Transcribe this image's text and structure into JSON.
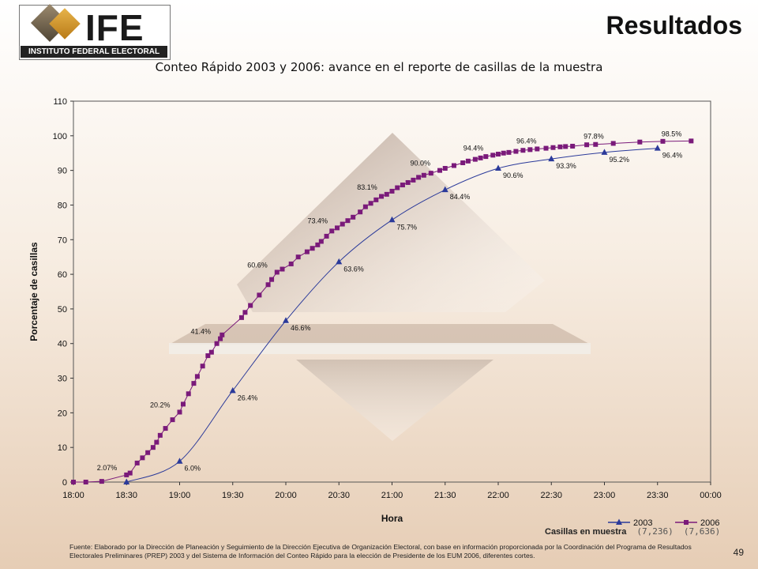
{
  "logo": {
    "text": "IFE",
    "subtitle": "INSTITUTO FEDERAL ELECTORAL"
  },
  "page_title": "Resultados",
  "page_number": "49",
  "source_note": "Fuente: Elaborado por la Dirección de Planeación y Seguimiento de la Dirección Ejecutiva de Organización Electoral, con base en información proporcionada por la Coordinación del Programa de Resultados Electorales Preliminares (PREP) 2003 y del Sistema de Información del Conteo Rápido para la elección de Presidente de los EUM 2006, diferentes cortes.",
  "sample": {
    "label": "Casillas en muestra",
    "n2003": "(7,236)",
    "n2006": "(7,636)"
  },
  "colors": {
    "s2003": "#2b3a9a",
    "s2006": "#7a1a7a"
  },
  "chart_data": {
    "type": "line",
    "title": "Conteo Rápido 2003 y 2006: avance en el reporte de casillas de la muestra",
    "xlabel": "Hora",
    "ylabel": "Porcentaje de casillas",
    "ylim": [
      0,
      110
    ],
    "yticks": [
      0,
      10,
      20,
      30,
      40,
      50,
      60,
      70,
      80,
      90,
      100,
      110
    ],
    "xlim": [
      "18:00",
      "00:00"
    ],
    "xticks": [
      "18:00",
      "18:30",
      "19:00",
      "19:30",
      "20:00",
      "20:30",
      "21:00",
      "21:30",
      "22:00",
      "22:30",
      "23:00",
      "23:30",
      "00:00"
    ],
    "grid": false,
    "legend": "bottom-right",
    "series": [
      {
        "name": "2003",
        "marker": "triangle",
        "points": [
          {
            "x": "18:30",
            "y": 0.0
          },
          {
            "x": "19:00",
            "y": 6.0,
            "label": "6.0%"
          },
          {
            "x": "19:30",
            "y": 26.4,
            "label": "26.4%"
          },
          {
            "x": "20:00",
            "y": 46.6,
            "label": "46.6%"
          },
          {
            "x": "20:30",
            "y": 63.6,
            "label": "63.6%"
          },
          {
            "x": "21:00",
            "y": 75.7,
            "label": "75.7%"
          },
          {
            "x": "21:30",
            "y": 84.4,
            "label": "84.4%"
          },
          {
            "x": "22:00",
            "y": 90.6,
            "label": "90.6%"
          },
          {
            "x": "22:30",
            "y": 93.3,
            "label": "93.3%"
          },
          {
            "x": "23:00",
            "y": 95.2,
            "label": "95.2%"
          },
          {
            "x": "23:30",
            "y": 96.4,
            "label": "96.4%"
          }
        ]
      },
      {
        "name": "2006",
        "marker": "square",
        "points": [
          {
            "x": "18:00",
            "y": 0.0
          },
          {
            "x": "18:07",
            "y": 0.0
          },
          {
            "x": "18:16",
            "y": 0.2
          },
          {
            "x": "18:30",
            "y": 2.07,
            "label": "2.07%"
          },
          {
            "x": "18:32",
            "y": 2.6
          },
          {
            "x": "18:36",
            "y": 5.5
          },
          {
            "x": "18:39",
            "y": 7.0
          },
          {
            "x": "18:42",
            "y": 8.5
          },
          {
            "x": "18:45",
            "y": 10.0
          },
          {
            "x": "18:47",
            "y": 11.5
          },
          {
            "x": "18:49",
            "y": 13.5
          },
          {
            "x": "18:52",
            "y": 15.5
          },
          {
            "x": "18:56",
            "y": 18.0
          },
          {
            "x": "19:00",
            "y": 20.2,
            "label": "20.2%"
          },
          {
            "x": "19:02",
            "y": 22.5
          },
          {
            "x": "19:05",
            "y": 25.5
          },
          {
            "x": "19:08",
            "y": 28.5
          },
          {
            "x": "19:10",
            "y": 30.5
          },
          {
            "x": "19:13",
            "y": 33.5
          },
          {
            "x": "19:16",
            "y": 36.5
          },
          {
            "x": "19:18",
            "y": 37.5
          },
          {
            "x": "19:21",
            "y": 40.0
          },
          {
            "x": "19:23",
            "y": 41.4,
            "label": "41.4%"
          },
          {
            "x": "19:24",
            "y": 42.5
          },
          {
            "x": "19:35",
            "y": 47.5
          },
          {
            "x": "19:37",
            "y": 49.0
          },
          {
            "x": "19:40",
            "y": 51.0
          },
          {
            "x": "19:45",
            "y": 54.0
          },
          {
            "x": "19:50",
            "y": 57.0
          },
          {
            "x": "19:52",
            "y": 58.5
          },
          {
            "x": "19:55",
            "y": 60.6,
            "label": "60.6%"
          },
          {
            "x": "19:58",
            "y": 61.5
          },
          {
            "x": "20:03",
            "y": 63.0
          },
          {
            "x": "20:07",
            "y": 65.0
          },
          {
            "x": "20:12",
            "y": 66.5
          },
          {
            "x": "20:15",
            "y": 67.5
          },
          {
            "x": "20:18",
            "y": 68.5
          },
          {
            "x": "20:20",
            "y": 69.5
          },
          {
            "x": "20:23",
            "y": 71.0
          },
          {
            "x": "20:26",
            "y": 72.5
          },
          {
            "x": "20:29",
            "y": 73.4,
            "label": "73.4%"
          },
          {
            "x": "20:32",
            "y": 74.5
          },
          {
            "x": "20:35",
            "y": 75.5
          },
          {
            "x": "20:38",
            "y": 76.5
          },
          {
            "x": "20:42",
            "y": 78.0
          },
          {
            "x": "20:45",
            "y": 79.5
          },
          {
            "x": "20:48",
            "y": 80.5
          },
          {
            "x": "20:51",
            "y": 81.5
          },
          {
            "x": "20:54",
            "y": 82.5
          },
          {
            "x": "20:57",
            "y": 83.1,
            "label": "83.1%"
          },
          {
            "x": "21:00",
            "y": 84.0
          },
          {
            "x": "21:03",
            "y": 85.0
          },
          {
            "x": "21:06",
            "y": 85.8
          },
          {
            "x": "21:09",
            "y": 86.5
          },
          {
            "x": "21:12",
            "y": 87.2
          },
          {
            "x": "21:15",
            "y": 88.0
          },
          {
            "x": "21:18",
            "y": 88.6
          },
          {
            "x": "21:22",
            "y": 89.2
          },
          {
            "x": "21:27",
            "y": 90.0,
            "label": "90.0%"
          },
          {
            "x": "21:30",
            "y": 90.6
          },
          {
            "x": "21:35",
            "y": 91.4
          },
          {
            "x": "21:40",
            "y": 92.2
          },
          {
            "x": "21:43",
            "y": 92.7
          },
          {
            "x": "21:47",
            "y": 93.2
          },
          {
            "x": "21:50",
            "y": 93.6
          },
          {
            "x": "21:53",
            "y": 94.0
          },
          {
            "x": "21:57",
            "y": 94.4,
            "label": "94.4%"
          },
          {
            "x": "22:00",
            "y": 94.7
          },
          {
            "x": "22:03",
            "y": 95.0
          },
          {
            "x": "22:06",
            "y": 95.2
          },
          {
            "x": "22:10",
            "y": 95.5
          },
          {
            "x": "22:14",
            "y": 95.8
          },
          {
            "x": "22:18",
            "y": 96.0
          },
          {
            "x": "22:22",
            "y": 96.2
          },
          {
            "x": "22:27",
            "y": 96.4,
            "label": "96.4%"
          },
          {
            "x": "22:31",
            "y": 96.6
          },
          {
            "x": "22:35",
            "y": 96.8
          },
          {
            "x": "22:38",
            "y": 96.9
          },
          {
            "x": "22:42",
            "y": 97.0
          },
          {
            "x": "22:50",
            "y": 97.4
          },
          {
            "x": "22:55",
            "y": 97.5
          },
          {
            "x": "23:05",
            "y": 97.8,
            "label": "97.8%"
          },
          {
            "x": "23:20",
            "y": 98.2
          },
          {
            "x": "23:33",
            "y": 98.4
          },
          {
            "x": "23:49",
            "y": 98.5,
            "label": "98.5%"
          }
        ]
      }
    ]
  }
}
